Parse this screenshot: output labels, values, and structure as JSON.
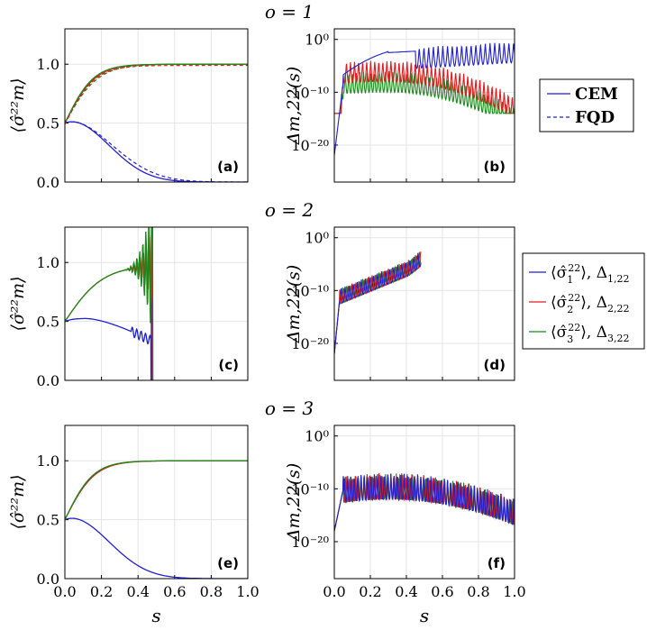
{
  "chart_data": {
    "type": "line",
    "x_label": "s",
    "x_range": [
      0.0,
      1.0
    ],
    "x_ticks": [
      "0.0",
      "0.2",
      "0.4",
      "0.6",
      "0.8",
      "1.0"
    ],
    "left_panels": {
      "ylabel": "⟨σ̂²²m⟩",
      "ylim": [
        0.0,
        1.3
      ],
      "y_ticks": [
        {
          "value": 0.0,
          "label": "0.0"
        },
        {
          "value": 0.5,
          "label": "0.5"
        },
        {
          "value": 1.0,
          "label": "1.0"
        }
      ]
    },
    "right_panels": {
      "ylabel": "Δm,22(s)",
      "scale": "log",
      "ylim_log10": [
        -27,
        2
      ],
      "y_ticks": [
        {
          "value": 0,
          "label": "10⁰"
        },
        {
          "value": -10,
          "label": "10⁻¹⁰"
        },
        {
          "value": -20,
          "label": "10⁻²⁰"
        }
      ]
    },
    "rows": [
      {
        "title": "o = 1",
        "left_label": "(a)",
        "right_label": "(b)",
        "with_fqd": true
      },
      {
        "title": "o = 2",
        "left_label": "(c)",
        "right_label": "(d)",
        "with_fqd": false
      },
      {
        "title": "o = 3",
        "left_label": "(e)",
        "right_label": "(f)",
        "with_fqd": false
      }
    ],
    "series": [
      {
        "name": "⟨σ̂₁²²⟩, Δ₁,₂₂",
        "color": "#1f1fd6",
        "m": 1
      },
      {
        "name": "⟨σ̂₂²²⟩, Δ₂,₂₂",
        "color": "#e31a1c",
        "m": 2
      },
      {
        "name": "⟨σ̂₃²²⟩, Δ₃,₂₂",
        "color": "#1a8a1a",
        "m": 3
      }
    ]
  },
  "legend_method": {
    "items": [
      {
        "label": "CEM",
        "style": "solid"
      },
      {
        "label": "FQD",
        "style": "dashed"
      }
    ]
  },
  "legend_series": {
    "items": [
      {
        "sym": "⟨σ̂",
        "sub": "1",
        "sup": "22",
        "delta": "Δ",
        "dsub": "1,22"
      },
      {
        "sym": "⟨σ̂",
        "sub": "2",
        "sup": "22",
        "delta": "Δ",
        "dsub": "2,22"
      },
      {
        "sym": "⟨σ̂",
        "sub": "3",
        "sup": "22",
        "delta": "Δ",
        "dsub": "3,22"
      }
    ]
  }
}
